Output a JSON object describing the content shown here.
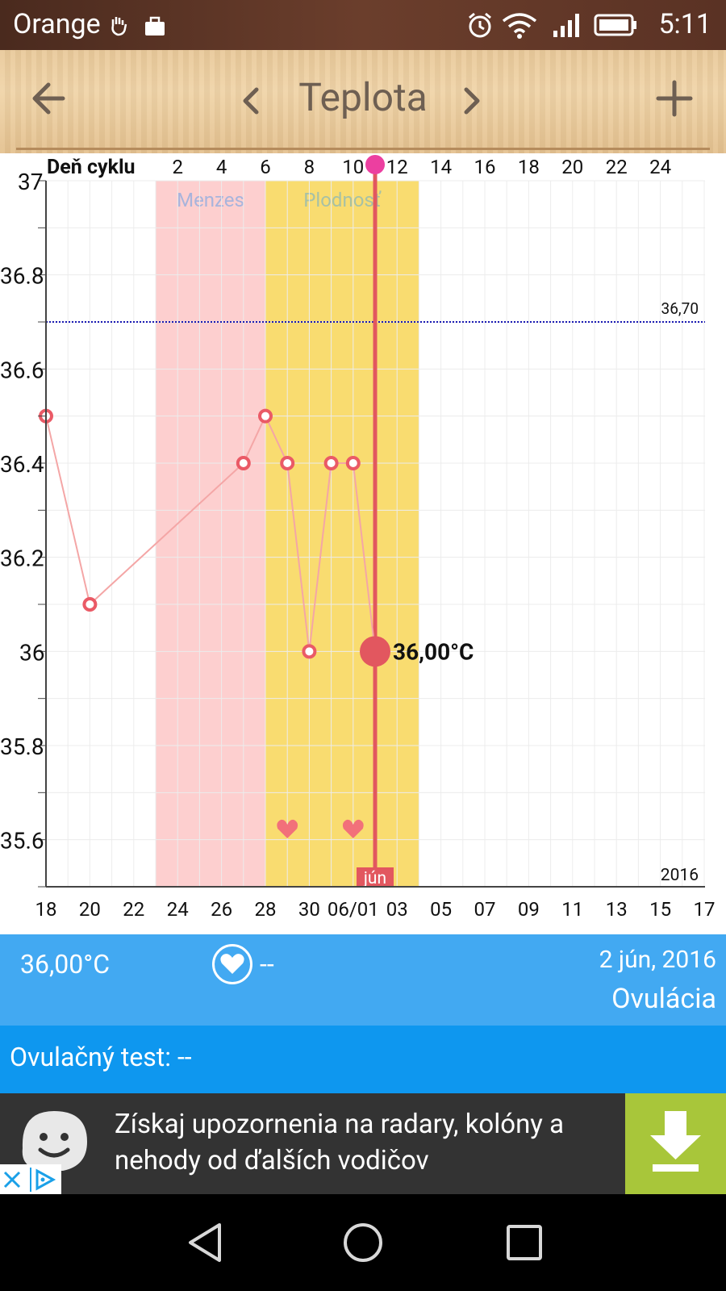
{
  "status_bar": {
    "carrier": "Orange",
    "time": "5:11"
  },
  "toolbar": {
    "title": "Teplota",
    "back_icon": "arrow-left-icon",
    "prev_icon": "chevron-left-icon",
    "next_icon": "chevron-right-icon",
    "add_icon": "plus-icon"
  },
  "chart_data": {
    "type": "line",
    "title": "",
    "top_axis_label": "Deň cyklu",
    "cycle_day_ticks": [
      "2",
      "4",
      "6",
      "8",
      "10",
      "12",
      "14",
      "16",
      "18",
      "20",
      "22",
      "24"
    ],
    "x_tick_labels": [
      "18",
      "20",
      "22",
      "24",
      "26",
      "28",
      "30",
      "06/01",
      "03",
      "05",
      "07",
      "09",
      "11",
      "13",
      "15",
      "17"
    ],
    "y_tick_labels": [
      "37",
      "36.8",
      "36.6",
      "36.4",
      "36.2",
      "36",
      "35.8",
      "35.6"
    ],
    "ylim": [
      35.5,
      37.0
    ],
    "series": [
      {
        "name": "",
        "x": [
          "05-18",
          "05-20",
          "05-27",
          "05-28",
          "05-29",
          "05-30",
          "05-31",
          "06-01",
          "06-02"
        ],
        "y": [
          36.5,
          36.1,
          36.4,
          36.5,
          36.4,
          36.0,
          36.4,
          36.4,
          36.0
        ]
      }
    ],
    "periods": [
      {
        "label": "Menzes",
        "from": "05-23",
        "to": "05-28",
        "color": "#fdcfcf"
      },
      {
        "label": "Plodnosť",
        "from": "05-28",
        "to": "06-04",
        "color": "#f9dc70"
      }
    ],
    "reference_line": {
      "value": 36.7,
      "label": "36,70"
    },
    "selected": {
      "x": "06-02",
      "value_label": "36,00°C",
      "month_label": "jún"
    },
    "hearts": [
      "05-29",
      "06-01"
    ],
    "year_label": "2016",
    "colors": {
      "line": "#f4a6a6",
      "marker": "#ea5a66",
      "selection": "#e2575f",
      "ref": "#1a1ab3"
    },
    "grid": true
  },
  "info": {
    "temperature": "36,00°C",
    "intercourse": "--",
    "date": "2 jún, 2016",
    "phase": "Ovulácia",
    "heart_icon": "heart-circle-icon"
  },
  "ovulation_test": {
    "label": "Ovulačný test: --"
  },
  "ad": {
    "line1": "Získaj upozornenia na radary, kolóny a",
    "line2": "nehody od ďalších vodičov",
    "download_icon": "download-icon"
  },
  "nav": {
    "back_icon": "nav-back-icon",
    "home_icon": "nav-home-icon",
    "recents_icon": "nav-recents-icon"
  }
}
